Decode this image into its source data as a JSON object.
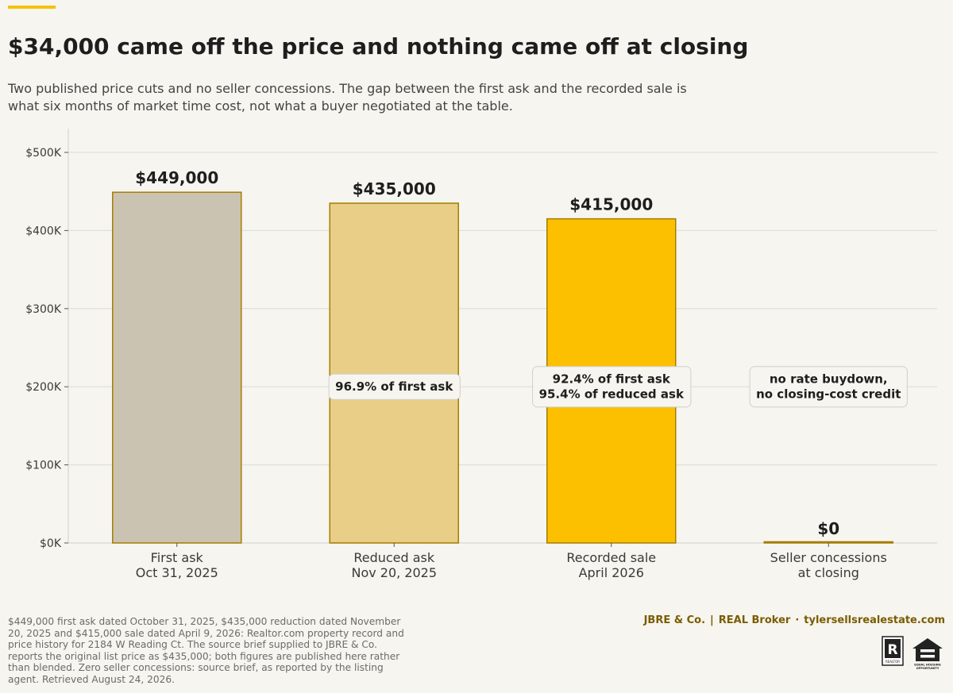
{
  "header": {
    "title": "$34,000 came off the price and nothing came off at closing",
    "subtitle": "Two published price cuts and no seller concessions. The gap between the first ask and the recorded sale is what six months of market time cost, not what a buyer negotiated at the table."
  },
  "chart_data": {
    "type": "bar",
    "categories": [
      [
        "First ask",
        "Oct 31, 2025"
      ],
      [
        "Reduced ask",
        "Nov 20, 2025"
      ],
      [
        "Recorded sale",
        "April 2026"
      ],
      [
        "Seller concessions",
        "at closing"
      ]
    ],
    "values": [
      449000,
      435000,
      415000,
      0
    ],
    "value_labels": [
      "$449,000",
      "$435,000",
      "$415,000",
      "$0"
    ],
    "bar_colors": [
      "#cbc3b2",
      "#e8ce87",
      "#fcc000",
      "#e9d697"
    ],
    "bar_stroke": "#a57d00",
    "annotations": [
      null,
      [
        "96.9% of first ask"
      ],
      [
        "92.4% of first ask",
        "95.4% of reduced ask"
      ],
      [
        "no rate buydown,",
        "no closing-cost credit"
      ]
    ],
    "annotation_value": 200000,
    "ylim": [
      0,
      500000
    ],
    "yticks": [
      0,
      100000,
      200000,
      300000,
      400000,
      500000
    ],
    "ytick_labels": [
      "$0K",
      "$100K",
      "$200K",
      "$300K",
      "$400K",
      "$500K"
    ],
    "grid": true,
    "xlabel": "",
    "ylabel": ""
  },
  "footer": {
    "note": "$449,000 first ask dated October 31, 2025, $435,000 reduction dated November 20, 2025 and $415,000 sale dated April 9, 2026: Realtor.com property record and price history for 2184 W Reading Ct. The source brief supplied to JBRE & Co. reports the original list price as $435,000; both figures are published here rather than blended. Zero seller concessions: source brief, as reported by the listing agent. Retrieved August 24, 2026.",
    "brand_name": "JBRE & Co.",
    "brand_sep": "|",
    "brokerage": "REAL Broker",
    "dot": "·",
    "website": "tylersellsrealestate.com",
    "realtor_mark": "REALTOR",
    "eho_text": "EQUAL HOUSING OPPORTUNITY"
  },
  "colors": {
    "accent": "#f5c200",
    "brand_text": "#7a5c00",
    "background": "#f6f5ef"
  }
}
